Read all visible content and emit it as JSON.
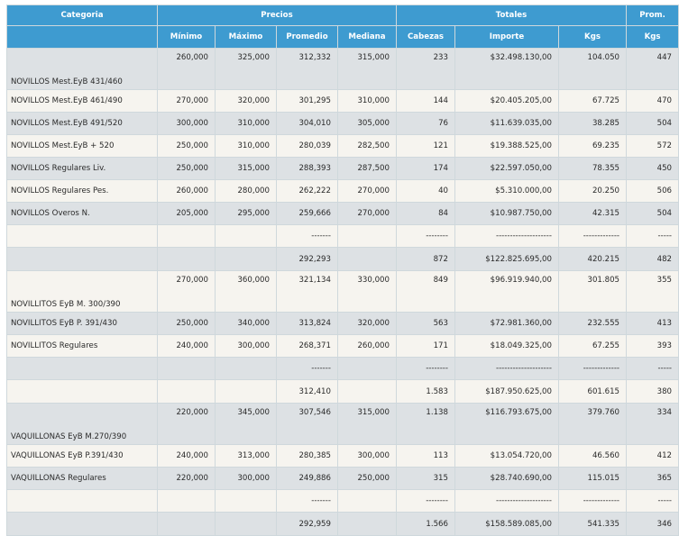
{
  "headers": {
    "categoria": "Categoria",
    "precios": "Precios",
    "totales": "Totales",
    "prom": "Prom.",
    "minimo": "Mínimo",
    "maximo": "Máximo",
    "promedio": "Promedio",
    "mediana": "Mediana",
    "cabezas": "Cabezas",
    "importe": "Importe",
    "kgs": "Kgs",
    "prom_kgs": "Kgs"
  },
  "rows": [
    {
      "kind": "tall",
      "bg": "gray",
      "cat": "NOVILLOS Mest.EyB 431/460",
      "min": "260,000",
      "max": "325,000",
      "prom": "312,332",
      "med": "315,000",
      "cab": "233",
      "imp": "$32.498.130,00",
      "kgs": "104.050",
      "pkgs": "447"
    },
    {
      "kind": "norm",
      "bg": "cream",
      "cat": "NOVILLOS Mest.EyB 461/490",
      "min": "270,000",
      "max": "320,000",
      "prom": "301,295",
      "med": "310,000",
      "cab": "144",
      "imp": "$20.405.205,00",
      "kgs": "67.725",
      "pkgs": "470"
    },
    {
      "kind": "norm",
      "bg": "gray",
      "cat": "NOVILLOS Mest.EyB 491/520",
      "min": "300,000",
      "max": "310,000",
      "prom": "304,010",
      "med": "305,000",
      "cab": "76",
      "imp": "$11.639.035,00",
      "kgs": "38.285",
      "pkgs": "504"
    },
    {
      "kind": "norm",
      "bg": "cream",
      "cat": "NOVILLOS Mest.EyB + 520",
      "min": "250,000",
      "max": "310,000",
      "prom": "280,039",
      "med": "282,500",
      "cab": "121",
      "imp": "$19.388.525,00",
      "kgs": "69.235",
      "pkgs": "572"
    },
    {
      "kind": "norm",
      "bg": "gray",
      "cat": "NOVILLOS Regulares Liv.",
      "min": "250,000",
      "max": "315,000",
      "prom": "288,393",
      "med": "287,500",
      "cab": "174",
      "imp": "$22.597.050,00",
      "kgs": "78.355",
      "pkgs": "450"
    },
    {
      "kind": "norm",
      "bg": "cream",
      "cat": "NOVILLOS Regulares Pes.",
      "min": "260,000",
      "max": "280,000",
      "prom": "262,222",
      "med": "270,000",
      "cab": "40",
      "imp": "$5.310.000,00",
      "kgs": "20.250",
      "pkgs": "506"
    },
    {
      "kind": "norm",
      "bg": "gray",
      "cat": "NOVILLOS Overos N.",
      "min": "205,000",
      "max": "295,000",
      "prom": "259,666",
      "med": "270,000",
      "cab": "84",
      "imp": "$10.987.750,00",
      "kgs": "42.315",
      "pkgs": "504"
    },
    {
      "kind": "sep",
      "bg": "cream",
      "cat": "",
      "min": "",
      "max": "",
      "prom": "-------",
      "med": "",
      "cab": "--------",
      "imp": "--------------------",
      "kgs": "-------------",
      "pkgs": "-----"
    },
    {
      "kind": "tot",
      "bg": "gray",
      "cat": "",
      "min": "",
      "max": "",
      "prom": "292,293",
      "med": "",
      "cab": "872",
      "imp": "$122.825.695,00",
      "kgs": "420.215",
      "pkgs": "482"
    },
    {
      "kind": "tall",
      "bg": "cream",
      "cat": "NOVILLITOS EyB M. 300/390",
      "min": "270,000",
      "max": "360,000",
      "prom": "321,134",
      "med": "330,000",
      "cab": "849",
      "imp": "$96.919.940,00",
      "kgs": "301.805",
      "pkgs": "355"
    },
    {
      "kind": "norm",
      "bg": "gray",
      "cat": "NOVILLITOS EyB P. 391/430",
      "min": "250,000",
      "max": "340,000",
      "prom": "313,824",
      "med": "320,000",
      "cab": "563",
      "imp": "$72.981.360,00",
      "kgs": "232.555",
      "pkgs": "413"
    },
    {
      "kind": "norm",
      "bg": "cream",
      "cat": "NOVILLITOS Regulares",
      "min": "240,000",
      "max": "300,000",
      "prom": "268,371",
      "med": "260,000",
      "cab": "171",
      "imp": "$18.049.325,00",
      "kgs": "67.255",
      "pkgs": "393"
    },
    {
      "kind": "sep",
      "bg": "gray",
      "cat": "",
      "min": "",
      "max": "",
      "prom": "-------",
      "med": "",
      "cab": "--------",
      "imp": "--------------------",
      "kgs": "-------------",
      "pkgs": "-----"
    },
    {
      "kind": "tot",
      "bg": "cream",
      "cat": "",
      "min": "",
      "max": "",
      "prom": "312,410",
      "med": "",
      "cab": "1.583",
      "imp": "$187.950.625,00",
      "kgs": "601.615",
      "pkgs": "380"
    },
    {
      "kind": "tall",
      "bg": "gray",
      "cat": "VAQUILLONAS EyB M.270/390",
      "min": "220,000",
      "max": "345,000",
      "prom": "307,546",
      "med": "315,000",
      "cab": "1.138",
      "imp": "$116.793.675,00",
      "kgs": "379.760",
      "pkgs": "334"
    },
    {
      "kind": "norm",
      "bg": "cream",
      "cat": "VAQUILLONAS EyB P.391/430",
      "min": "240,000",
      "max": "313,000",
      "prom": "280,385",
      "med": "300,000",
      "cab": "113",
      "imp": "$13.054.720,00",
      "kgs": "46.560",
      "pkgs": "412"
    },
    {
      "kind": "norm",
      "bg": "gray",
      "cat": "VAQUILLONAS Regulares",
      "min": "220,000",
      "max": "300,000",
      "prom": "249,886",
      "med": "250,000",
      "cab": "315",
      "imp": "$28.740.690,00",
      "kgs": "115.015",
      "pkgs": "365"
    },
    {
      "kind": "sep",
      "bg": "cream",
      "cat": "",
      "min": "",
      "max": "",
      "prom": "-------",
      "med": "",
      "cab": "--------",
      "imp": "--------------------",
      "kgs": "-------------",
      "pkgs": "-----"
    },
    {
      "kind": "tot",
      "bg": "gray",
      "cat": "",
      "min": "",
      "max": "",
      "prom": "292,959",
      "med": "",
      "cab": "1.566",
      "imp": "$158.589.085,00",
      "kgs": "541.335",
      "pkgs": "346"
    }
  ]
}
